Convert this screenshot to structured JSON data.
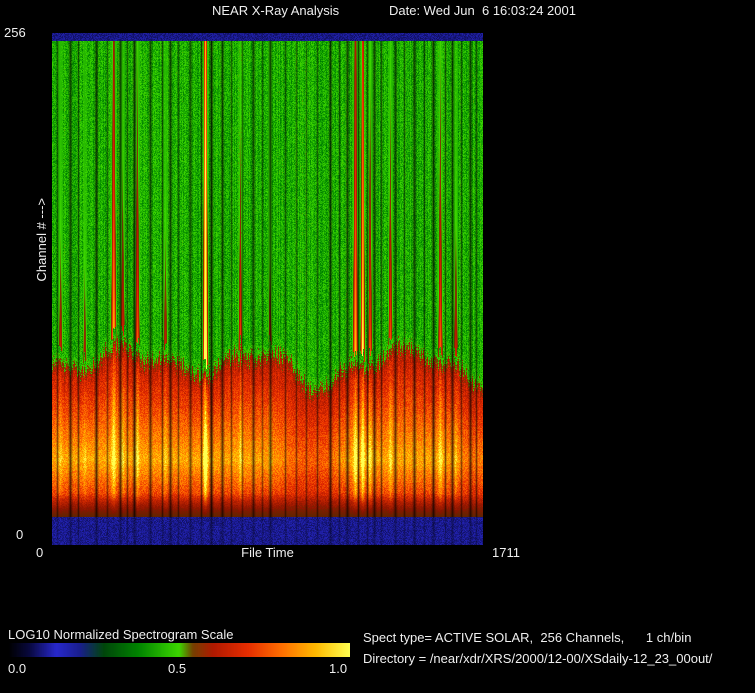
{
  "header": {
    "title": "NEAR X-Ray Analysis",
    "date_label": "Date: Wed Jun  6 16:03:24 2001"
  },
  "plot": {
    "y_axis": {
      "label": "Channel # --->",
      "top_tick": "256",
      "bottom_tick": "0"
    },
    "x_axis": {
      "label": "File Time",
      "left_tick": "0",
      "right_tick": "1711"
    }
  },
  "colorbar": {
    "label": "LOG10 Normalized Spectrogram Scale",
    "ticks": [
      "0.0",
      "0.5",
      "1.0"
    ]
  },
  "info": {
    "spect_type": "Spect type= ACTIVE SOLAR,  256 Channels,      1 ch/bin",
    "directory": "Directory = /near/xdr/XRS/2000/12-00/XSdaily-12_23_00out/"
  },
  "chart_data": {
    "type": "heatmap",
    "title": "NEAR X-Ray Analysis",
    "date": "Wed Jun  6 16:03:24 2001",
    "xlabel": "File Time",
    "ylabel": "Channel # --->",
    "xlim": [
      0,
      1711
    ],
    "ylim": [
      0,
      256
    ],
    "colorbar": {
      "label": "LOG10 Normalized Spectrogram Scale",
      "range": [
        0.0,
        1.0
      ]
    },
    "spect_type": "ACTIVE SOLAR",
    "channels": 256,
    "ch_per_bin": 1,
    "description": "X-ray spectrogram, 256 channels vs file time 0-1711. Upper ~60% of channels quiet (green, normalized ~0.45). Lower channels form a bright red/orange continuum band peaking near 15% above bottom; thin navy bands at extreme top and bottom channels. Numerous narrow vertical data-gap streaks (dark) and solar flare brightenings (yellow columns); the strongest flare (~36% along the time axis) saturates to yellow across the full channel range.",
    "background_level": 0.45,
    "band": {
      "top_frac": 0.615,
      "peak_frac": 0.835,
      "navy_top_frac": 0.0137,
      "navy_bottom_frac": 0.947
    },
    "colormap_stops": [
      [
        0.0,
        0,
        0,
        0
      ],
      [
        0.06,
        8,
        8,
        60
      ],
      [
        0.14,
        40,
        40,
        205
      ],
      [
        0.21,
        25,
        30,
        140
      ],
      [
        0.28,
        0,
        70,
        10
      ],
      [
        0.38,
        0,
        132,
        0
      ],
      [
        0.5,
        60,
        215,
        0
      ],
      [
        0.54,
        115,
        65,
        0
      ],
      [
        0.6,
        175,
        25,
        0
      ],
      [
        0.7,
        230,
        45,
        0
      ],
      [
        0.8,
        255,
        110,
        0
      ],
      [
        0.9,
        255,
        185,
        0
      ],
      [
        1.0,
        255,
        255,
        80
      ]
    ],
    "flares": [
      {
        "x": 0.019,
        "amp": 0.35,
        "w": 0.004
      },
      {
        "x": 0.075,
        "amp": 0.3,
        "w": 0.004
      },
      {
        "x": 0.142,
        "amp": 0.8,
        "w": 0.005
      },
      {
        "x": 0.163,
        "amp": 0.45,
        "w": 0.004
      },
      {
        "x": 0.197,
        "amp": 0.6,
        "w": 0.0045
      },
      {
        "x": 0.262,
        "amp": 0.35,
        "w": 0.004
      },
      {
        "x": 0.355,
        "amp": 1.35,
        "w": 0.0045
      },
      {
        "x": 0.436,
        "amp": 0.5,
        "w": 0.004
      },
      {
        "x": 0.505,
        "amp": 0.3,
        "w": 0.004
      },
      {
        "x": 0.703,
        "amp": 0.85,
        "w": 0.005
      },
      {
        "x": 0.72,
        "amp": 1.05,
        "w": 0.004
      },
      {
        "x": 0.737,
        "amp": 0.6,
        "w": 0.004
      },
      {
        "x": 0.784,
        "amp": 0.55,
        "w": 0.004
      },
      {
        "x": 0.9,
        "amp": 0.6,
        "w": 0.0045
      },
      {
        "x": 0.936,
        "amp": 0.4,
        "w": 0.004
      }
    ],
    "gaps": [
      {
        "x": 0.012,
        "w": 1,
        "d": 0.45
      },
      {
        "x": 0.042,
        "w": 2,
        "d": 0.6
      },
      {
        "x": 0.06,
        "w": 1,
        "d": 0.5
      },
      {
        "x": 0.102,
        "w": 2,
        "d": 0.65
      },
      {
        "x": 0.128,
        "w": 1,
        "d": 0.4
      },
      {
        "x": 0.158,
        "w": 2,
        "d": 0.6
      },
      {
        "x": 0.174,
        "w": 1,
        "d": 0.45
      },
      {
        "x": 0.19,
        "w": 2,
        "d": 0.7
      },
      {
        "x": 0.227,
        "w": 2,
        "d": 0.55
      },
      {
        "x": 0.255,
        "w": 1,
        "d": 0.5
      },
      {
        "x": 0.274,
        "w": 2,
        "d": 0.6
      },
      {
        "x": 0.292,
        "w": 1,
        "d": 0.45
      },
      {
        "x": 0.32,
        "w": 2,
        "d": 0.5
      },
      {
        "x": 0.345,
        "w": 1,
        "d": 0.55
      },
      {
        "x": 0.368,
        "w": 2,
        "d": 0.75
      },
      {
        "x": 0.394,
        "w": 2,
        "d": 0.6
      },
      {
        "x": 0.415,
        "w": 1,
        "d": 0.45
      },
      {
        "x": 0.44,
        "w": 1,
        "d": 0.4
      },
      {
        "x": 0.466,
        "w": 2,
        "d": 0.55
      },
      {
        "x": 0.487,
        "w": 1,
        "d": 0.4
      },
      {
        "x": 0.506,
        "w": 2,
        "d": 0.6
      },
      {
        "x": 0.541,
        "w": 1,
        "d": 0.45
      },
      {
        "x": 0.565,
        "w": 1,
        "d": 0.4
      },
      {
        "x": 0.589,
        "w": 1,
        "d": 0.4
      },
      {
        "x": 0.615,
        "w": 1,
        "d": 0.45
      },
      {
        "x": 0.645,
        "w": 2,
        "d": 0.65
      },
      {
        "x": 0.666,
        "w": 1,
        "d": 0.5
      },
      {
        "x": 0.684,
        "w": 2,
        "d": 0.6
      },
      {
        "x": 0.711,
        "w": 1,
        "d": 0.6
      },
      {
        "x": 0.73,
        "w": 1,
        "d": 0.55
      },
      {
        "x": 0.748,
        "w": 2,
        "d": 0.6
      },
      {
        "x": 0.763,
        "w": 1,
        "d": 0.5
      },
      {
        "x": 0.796,
        "w": 2,
        "d": 0.55
      },
      {
        "x": 0.817,
        "w": 1,
        "d": 0.45
      },
      {
        "x": 0.84,
        "w": 2,
        "d": 0.6
      },
      {
        "x": 0.863,
        "w": 1,
        "d": 0.5
      },
      {
        "x": 0.884,
        "w": 2,
        "d": 0.65
      },
      {
        "x": 0.912,
        "w": 1,
        "d": 0.5
      },
      {
        "x": 0.928,
        "w": 2,
        "d": 0.6
      },
      {
        "x": 0.949,
        "w": 1,
        "d": 0.45
      },
      {
        "x": 0.97,
        "w": 2,
        "d": 0.6
      },
      {
        "x": 0.984,
        "w": 1,
        "d": 0.5
      }
    ],
    "dips": [
      {
        "x": 0.585,
        "w": 0.06,
        "amount": 0.35
      },
      {
        "x": 0.64,
        "w": 0.03,
        "amount": 0.15
      },
      {
        "x": 0.975,
        "w": 0.035,
        "amount": 0.25
      }
    ]
  }
}
